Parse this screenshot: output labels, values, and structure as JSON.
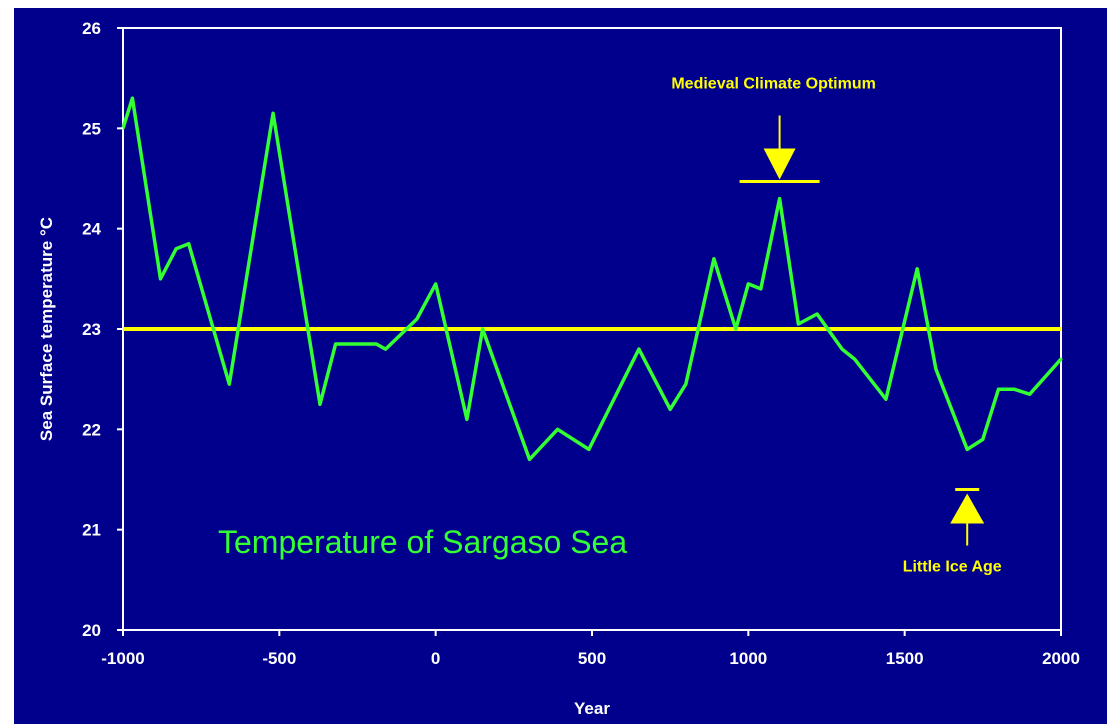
{
  "colors": {
    "background": "#00008c",
    "series": "#33ff33",
    "reference_line": "#ffff00",
    "annotation": "#ffff00",
    "text": "#ffffff"
  },
  "chart_data": {
    "type": "line",
    "title": "Temperature of Sargaso Sea",
    "xlabel": "Year",
    "ylabel": "Sea Surface temperature °C",
    "xlim": [
      -1000,
      2000
    ],
    "ylim": [
      20,
      26
    ],
    "x_ticks": [
      "-1000",
      "-500",
      "0",
      "500",
      "1000",
      "1500",
      "2000"
    ],
    "y_ticks": [
      "20",
      "21",
      "22",
      "23",
      "24",
      "25",
      "26"
    ],
    "grid": false,
    "series": [
      {
        "x": [
          -1000,
          -970,
          -880,
          -830,
          -790,
          -660,
          -520,
          -370,
          -320,
          -260,
          -190,
          -160,
          -60,
          0,
          100,
          150,
          300,
          390,
          490,
          650,
          750,
          800,
          890,
          960,
          1000,
          1040,
          1100,
          1160,
          1220,
          1300,
          1340,
          1440,
          1540,
          1600,
          1700,
          1750,
          1800,
          1850,
          1900,
          2000
        ],
        "y": [
          25.0,
          25.3,
          23.5,
          23.8,
          23.85,
          22.45,
          25.15,
          22.25,
          22.85,
          22.85,
          22.85,
          22.8,
          23.1,
          23.45,
          22.1,
          23.0,
          21.7,
          22.0,
          21.8,
          22.8,
          22.2,
          22.45,
          23.7,
          23.0,
          23.45,
          23.4,
          24.3,
          23.05,
          23.15,
          22.8,
          22.7,
          22.3,
          23.6,
          22.6,
          21.8,
          21.9,
          22.4,
          22.4,
          22.35,
          22.7
        ]
      }
    ],
    "reference_lines": [
      {
        "y": 23.0
      }
    ],
    "annotations": [
      {
        "text": "Medieval Climate Optimum",
        "x": 1100,
        "y": 24.5,
        "arrow": "down"
      },
      {
        "text": "Little Ice Age",
        "x": 1700,
        "y": 21.4,
        "arrow": "up"
      }
    ]
  }
}
